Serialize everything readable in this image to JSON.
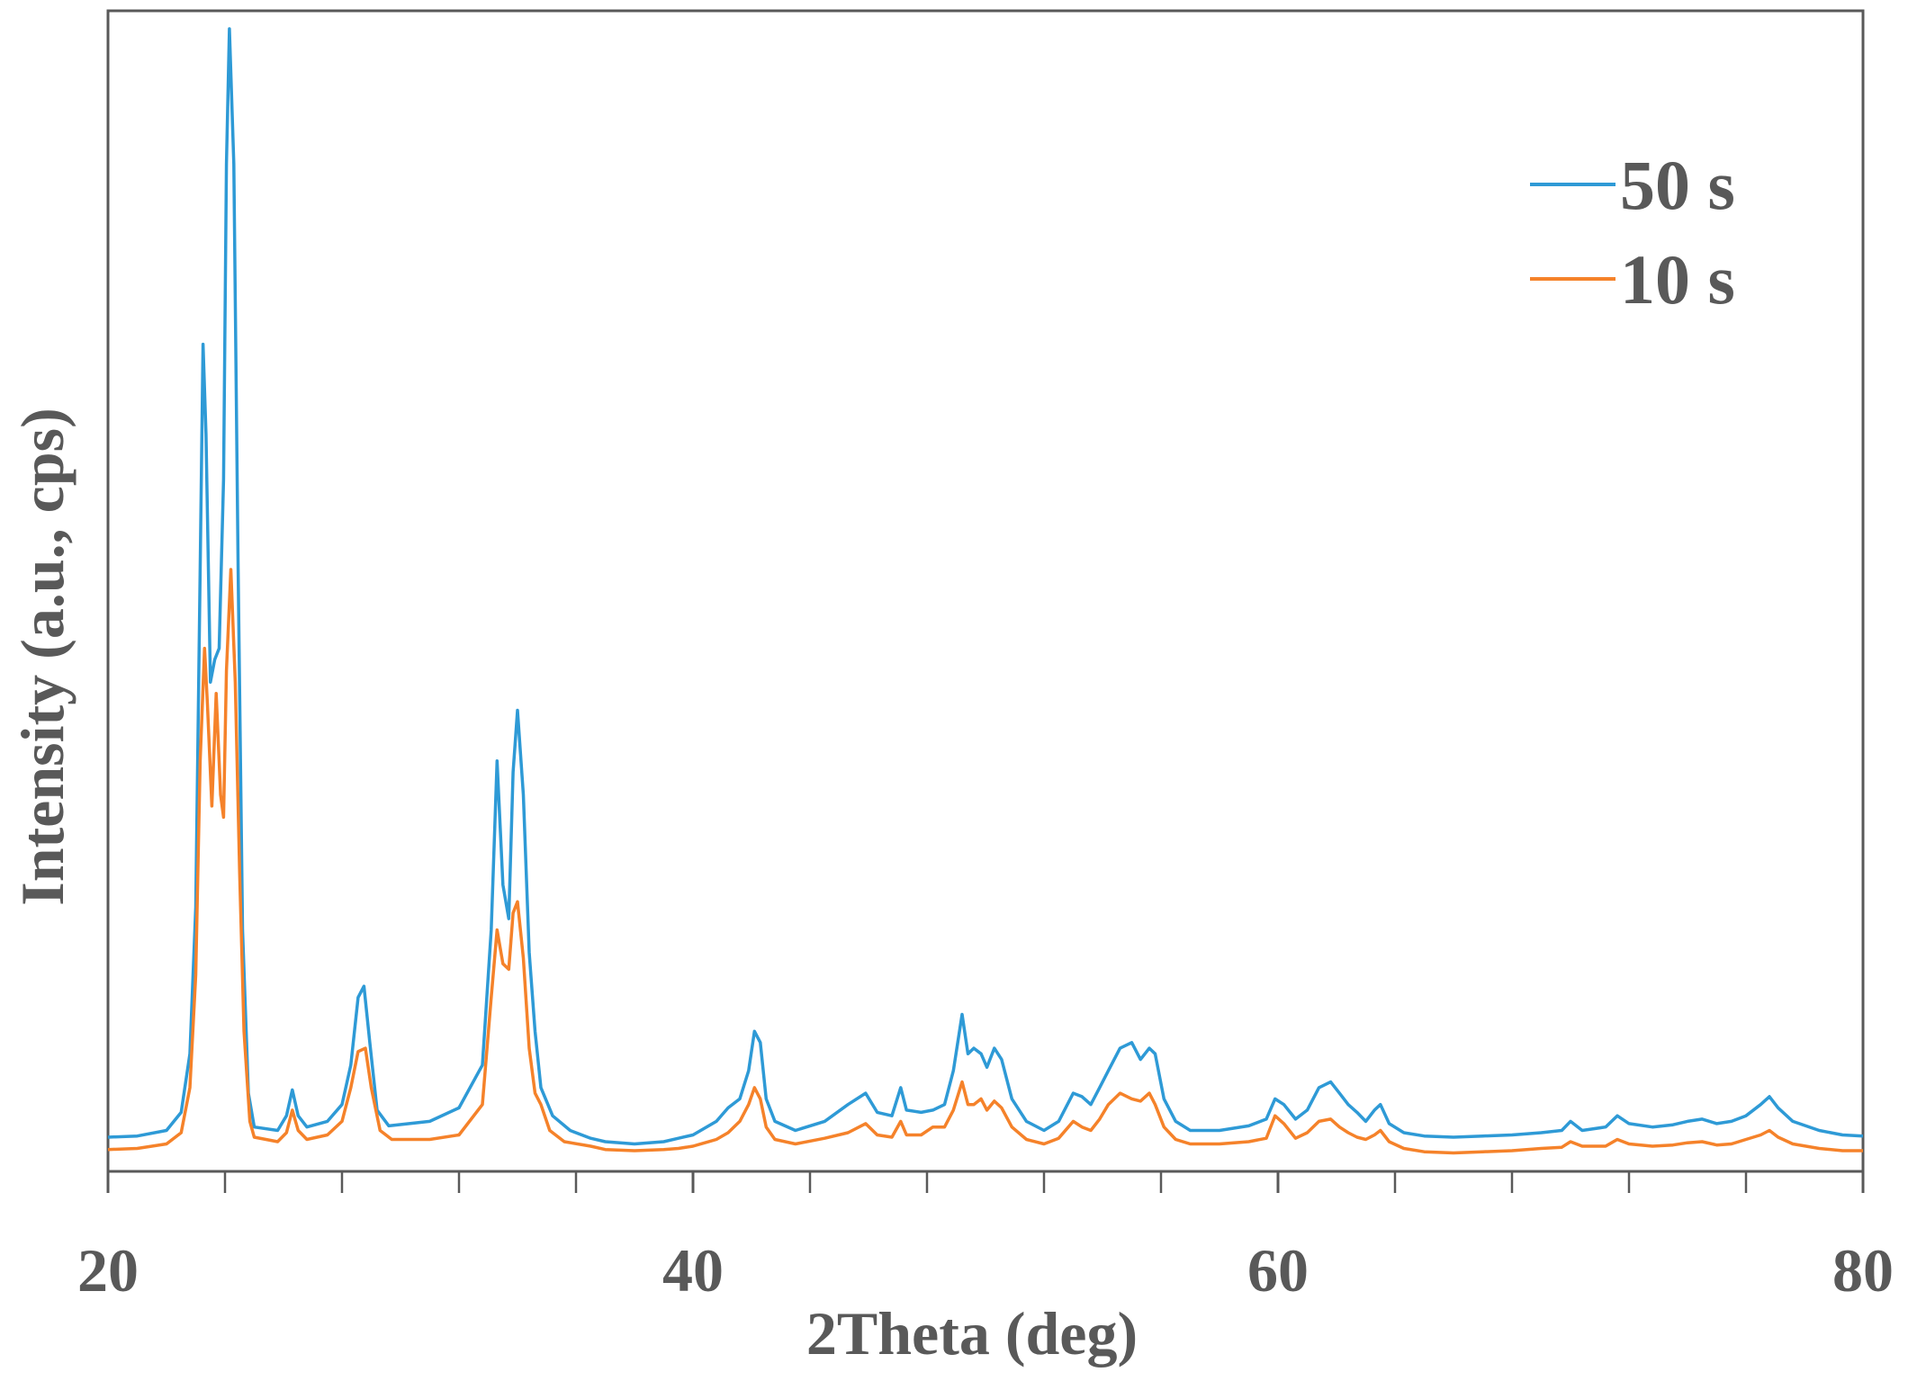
{
  "chart_data": {
    "type": "line",
    "title": "",
    "xlabel": "2Theta (deg)",
    "ylabel": "Intensity (a.u., cps)",
    "xlim": [
      20,
      80
    ],
    "ylim": [
      0,
      1000
    ],
    "x_major_ticks": [
      20,
      40,
      60,
      80
    ],
    "x_minor_ticks": [
      24,
      28,
      32,
      36,
      44,
      48,
      52,
      56,
      64,
      68,
      72,
      76
    ],
    "grid": false,
    "legend_position": "top-right",
    "series": [
      {
        "name": "50 s",
        "color": "#2e9ad6",
        "points": [
          [
            20.0,
            16
          ],
          [
            21.0,
            17
          ],
          [
            22.0,
            22
          ],
          [
            22.5,
            38
          ],
          [
            22.8,
            90
          ],
          [
            23.0,
            220
          ],
          [
            23.15,
            520
          ],
          [
            23.25,
            720
          ],
          [
            23.35,
            640
          ],
          [
            23.5,
            420
          ],
          [
            23.65,
            440
          ],
          [
            23.8,
            450
          ],
          [
            23.95,
            600
          ],
          [
            24.05,
            880
          ],
          [
            24.15,
            1000
          ],
          [
            24.3,
            880
          ],
          [
            24.45,
            520
          ],
          [
            24.6,
            200
          ],
          [
            24.8,
            55
          ],
          [
            25.0,
            25
          ],
          [
            25.8,
            22
          ],
          [
            26.1,
            35
          ],
          [
            26.3,
            58
          ],
          [
            26.5,
            35
          ],
          [
            26.8,
            25
          ],
          [
            27.5,
            30
          ],
          [
            28.0,
            45
          ],
          [
            28.3,
            80
          ],
          [
            28.55,
            140
          ],
          [
            28.75,
            150
          ],
          [
            28.95,
            100
          ],
          [
            29.2,
            40
          ],
          [
            29.6,
            26
          ],
          [
            31.0,
            30
          ],
          [
            32.0,
            42
          ],
          [
            32.8,
            80
          ],
          [
            33.1,
            200
          ],
          [
            33.3,
            350
          ],
          [
            33.5,
            240
          ],
          [
            33.7,
            210
          ],
          [
            33.85,
            340
          ],
          [
            34.0,
            395
          ],
          [
            34.2,
            320
          ],
          [
            34.4,
            180
          ],
          [
            34.6,
            110
          ],
          [
            34.8,
            60
          ],
          [
            35.2,
            35
          ],
          [
            35.8,
            22
          ],
          [
            36.5,
            15
          ],
          [
            37.0,
            12
          ],
          [
            38.0,
            10
          ],
          [
            39.0,
            12
          ],
          [
            39.5,
            15
          ],
          [
            40.0,
            18
          ],
          [
            40.8,
            30
          ],
          [
            41.2,
            42
          ],
          [
            41.6,
            50
          ],
          [
            41.9,
            75
          ],
          [
            42.1,
            110
          ],
          [
            42.3,
            100
          ],
          [
            42.5,
            50
          ],
          [
            42.8,
            30
          ],
          [
            43.5,
            22
          ],
          [
            44.5,
            30
          ],
          [
            45.3,
            45
          ],
          [
            45.9,
            55
          ],
          [
            46.3,
            38
          ],
          [
            46.8,
            35
          ],
          [
            47.1,
            60
          ],
          [
            47.3,
            40
          ],
          [
            47.8,
            38
          ],
          [
            48.2,
            40
          ],
          [
            48.6,
            45
          ],
          [
            48.9,
            75
          ],
          [
            49.2,
            125
          ],
          [
            49.4,
            90
          ],
          [
            49.6,
            95
          ],
          [
            49.85,
            90
          ],
          [
            50.05,
            78
          ],
          [
            50.3,
            95
          ],
          [
            50.55,
            85
          ],
          [
            50.9,
            50
          ],
          [
            51.4,
            30
          ],
          [
            52.0,
            22
          ],
          [
            52.5,
            30
          ],
          [
            53.0,
            55
          ],
          [
            53.3,
            52
          ],
          [
            53.6,
            45
          ],
          [
            53.9,
            60
          ],
          [
            54.2,
            75
          ],
          [
            54.6,
            95
          ],
          [
            55.0,
            100
          ],
          [
            55.3,
            85
          ],
          [
            55.6,
            95
          ],
          [
            55.8,
            90
          ],
          [
            56.1,
            50
          ],
          [
            56.5,
            30
          ],
          [
            57.0,
            22
          ],
          [
            58.0,
            22
          ],
          [
            59.0,
            26
          ],
          [
            59.6,
            32
          ],
          [
            59.9,
            50
          ],
          [
            60.2,
            45
          ],
          [
            60.6,
            32
          ],
          [
            61.0,
            40
          ],
          [
            61.4,
            60
          ],
          [
            61.8,
            65
          ],
          [
            62.1,
            55
          ],
          [
            62.4,
            45
          ],
          [
            62.7,
            38
          ],
          [
            63.0,
            30
          ],
          [
            63.3,
            40
          ],
          [
            63.5,
            45
          ],
          [
            63.8,
            28
          ],
          [
            64.3,
            20
          ],
          [
            65.0,
            17
          ],
          [
            66.0,
            16
          ],
          [
            67.0,
            17
          ],
          [
            68.0,
            18
          ],
          [
            69.0,
            20
          ],
          [
            69.7,
            22
          ],
          [
            70.0,
            30
          ],
          [
            70.4,
            22
          ],
          [
            71.2,
            25
          ],
          [
            71.6,
            35
          ],
          [
            72.0,
            28
          ],
          [
            72.8,
            25
          ],
          [
            73.5,
            27
          ],
          [
            74.0,
            30
          ],
          [
            74.5,
            32
          ],
          [
            75.0,
            28
          ],
          [
            75.5,
            30
          ],
          [
            76.0,
            35
          ],
          [
            76.5,
            45
          ],
          [
            76.8,
            52
          ],
          [
            77.1,
            42
          ],
          [
            77.6,
            30
          ],
          [
            78.5,
            22
          ],
          [
            79.3,
            18
          ],
          [
            80.0,
            17
          ]
        ]
      },
      {
        "name": "10 s",
        "color": "#f5822a",
        "points": [
          [
            20.0,
            5
          ],
          [
            21.0,
            6
          ],
          [
            22.0,
            10
          ],
          [
            22.5,
            20
          ],
          [
            22.8,
            60
          ],
          [
            23.0,
            160
          ],
          [
            23.15,
            350
          ],
          [
            23.3,
            450
          ],
          [
            23.4,
            400
          ],
          [
            23.55,
            310
          ],
          [
            23.7,
            410
          ],
          [
            23.85,
            320
          ],
          [
            23.95,
            300
          ],
          [
            24.05,
            430
          ],
          [
            24.2,
            520
          ],
          [
            24.35,
            420
          ],
          [
            24.5,
            250
          ],
          [
            24.65,
            110
          ],
          [
            24.85,
            30
          ],
          [
            25.0,
            16
          ],
          [
            25.8,
            12
          ],
          [
            26.1,
            20
          ],
          [
            26.3,
            40
          ],
          [
            26.5,
            22
          ],
          [
            26.8,
            14
          ],
          [
            27.5,
            18
          ],
          [
            28.0,
            30
          ],
          [
            28.3,
            60
          ],
          [
            28.55,
            92
          ],
          [
            28.8,
            95
          ],
          [
            29.0,
            60
          ],
          [
            29.3,
            22
          ],
          [
            29.7,
            14
          ],
          [
            31.0,
            14
          ],
          [
            32.0,
            18
          ],
          [
            32.8,
            45
          ],
          [
            33.1,
            140
          ],
          [
            33.3,
            200
          ],
          [
            33.5,
            170
          ],
          [
            33.7,
            165
          ],
          [
            33.85,
            215
          ],
          [
            34.0,
            225
          ],
          [
            34.2,
            175
          ],
          [
            34.4,
            95
          ],
          [
            34.6,
            55
          ],
          [
            34.8,
            45
          ],
          [
            35.1,
            22
          ],
          [
            35.6,
            12
          ],
          [
            36.5,
            8
          ],
          [
            37.0,
            5
          ],
          [
            38.0,
            4
          ],
          [
            39.0,
            5
          ],
          [
            39.5,
            6
          ],
          [
            40.0,
            8
          ],
          [
            40.8,
            14
          ],
          [
            41.2,
            20
          ],
          [
            41.6,
            30
          ],
          [
            41.9,
            45
          ],
          [
            42.1,
            60
          ],
          [
            42.3,
            50
          ],
          [
            42.5,
            25
          ],
          [
            42.8,
            14
          ],
          [
            43.5,
            10
          ],
          [
            44.5,
            15
          ],
          [
            45.3,
            20
          ],
          [
            45.9,
            28
          ],
          [
            46.3,
            18
          ],
          [
            46.8,
            16
          ],
          [
            47.1,
            30
          ],
          [
            47.3,
            18
          ],
          [
            47.8,
            18
          ],
          [
            48.2,
            25
          ],
          [
            48.6,
            25
          ],
          [
            48.9,
            40
          ],
          [
            49.2,
            65
          ],
          [
            49.4,
            45
          ],
          [
            49.6,
            45
          ],
          [
            49.85,
            50
          ],
          [
            50.05,
            40
          ],
          [
            50.3,
            48
          ],
          [
            50.55,
            42
          ],
          [
            50.9,
            25
          ],
          [
            51.4,
            14
          ],
          [
            52.0,
            10
          ],
          [
            52.5,
            15
          ],
          [
            53.0,
            30
          ],
          [
            53.3,
            25
          ],
          [
            53.6,
            22
          ],
          [
            53.9,
            32
          ],
          [
            54.2,
            45
          ],
          [
            54.6,
            55
          ],
          [
            55.0,
            50
          ],
          [
            55.3,
            48
          ],
          [
            55.6,
            55
          ],
          [
            55.8,
            45
          ],
          [
            56.1,
            25
          ],
          [
            56.5,
            14
          ],
          [
            57.0,
            10
          ],
          [
            58.0,
            10
          ],
          [
            59.0,
            12
          ],
          [
            59.6,
            15
          ],
          [
            59.9,
            35
          ],
          [
            60.2,
            28
          ],
          [
            60.6,
            15
          ],
          [
            61.0,
            20
          ],
          [
            61.4,
            30
          ],
          [
            61.8,
            32
          ],
          [
            62.1,
            25
          ],
          [
            62.4,
            20
          ],
          [
            62.7,
            16
          ],
          [
            63.0,
            14
          ],
          [
            63.3,
            18
          ],
          [
            63.5,
            22
          ],
          [
            63.8,
            12
          ],
          [
            64.3,
            6
          ],
          [
            65.0,
            3
          ],
          [
            66.0,
            2
          ],
          [
            67.0,
            3
          ],
          [
            68.0,
            4
          ],
          [
            69.0,
            6
          ],
          [
            69.7,
            7
          ],
          [
            70.0,
            12
          ],
          [
            70.4,
            8
          ],
          [
            71.2,
            8
          ],
          [
            71.6,
            14
          ],
          [
            72.0,
            10
          ],
          [
            72.8,
            8
          ],
          [
            73.5,
            9
          ],
          [
            74.0,
            11
          ],
          [
            74.5,
            12
          ],
          [
            75.0,
            9
          ],
          [
            75.5,
            10
          ],
          [
            76.0,
            14
          ],
          [
            76.5,
            18
          ],
          [
            76.8,
            22
          ],
          [
            77.1,
            16
          ],
          [
            77.6,
            10
          ],
          [
            78.5,
            6
          ],
          [
            79.3,
            4
          ],
          [
            80.0,
            4
          ]
        ]
      }
    ]
  }
}
